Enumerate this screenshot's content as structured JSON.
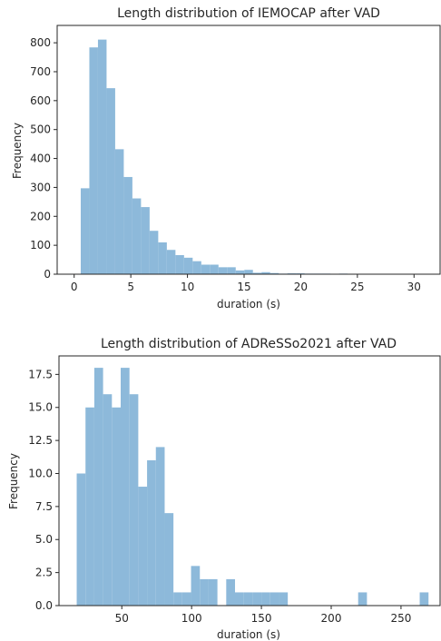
{
  "chart_data": [
    {
      "type": "bar",
      "subtype": "histogram",
      "title": "Length distribution of IEMOCAP after VAD",
      "xlabel": "duration (s)",
      "ylabel": "Frequency",
      "xlim": [
        -1.5,
        32.3
      ],
      "ylim": [
        0,
        860
      ],
      "xticks": [
        0,
        5,
        10,
        15,
        20,
        25,
        30
      ],
      "yticks": [
        0,
        100,
        200,
        300,
        400,
        500,
        600,
        700,
        800
      ],
      "bar_color": "#8db9da",
      "bins": [
        {
          "x0": 0.58,
          "x1": 1.34,
          "value": 297
        },
        {
          "x0": 1.34,
          "x1": 2.1,
          "value": 784
        },
        {
          "x0": 2.1,
          "x1": 2.86,
          "value": 811
        },
        {
          "x0": 2.86,
          "x1": 3.62,
          "value": 643
        },
        {
          "x0": 3.62,
          "x1": 4.38,
          "value": 432
        },
        {
          "x0": 4.38,
          "x1": 5.14,
          "value": 336
        },
        {
          "x0": 5.14,
          "x1": 5.9,
          "value": 262
        },
        {
          "x0": 5.9,
          "x1": 6.66,
          "value": 232
        },
        {
          "x0": 6.66,
          "x1": 7.42,
          "value": 150
        },
        {
          "x0": 7.42,
          "x1": 8.18,
          "value": 110
        },
        {
          "x0": 8.18,
          "x1": 8.94,
          "value": 84
        },
        {
          "x0": 8.94,
          "x1": 9.7,
          "value": 66
        },
        {
          "x0": 9.7,
          "x1": 10.46,
          "value": 57
        },
        {
          "x0": 10.46,
          "x1": 11.22,
          "value": 45
        },
        {
          "x0": 11.22,
          "x1": 11.98,
          "value": 33
        },
        {
          "x0": 11.98,
          "x1": 12.74,
          "value": 33
        },
        {
          "x0": 12.74,
          "x1": 13.5,
          "value": 24
        },
        {
          "x0": 13.5,
          "x1": 14.26,
          "value": 24
        },
        {
          "x0": 14.26,
          "x1": 15.02,
          "value": 13
        },
        {
          "x0": 15.02,
          "x1": 15.78,
          "value": 15
        },
        {
          "x0": 15.78,
          "x1": 16.54,
          "value": 5
        },
        {
          "x0": 16.54,
          "x1": 17.3,
          "value": 7
        },
        {
          "x0": 17.3,
          "x1": 18.06,
          "value": 4
        },
        {
          "x0": 18.06,
          "x1": 18.82,
          "value": 2
        },
        {
          "x0": 18.82,
          "x1": 19.58,
          "value": 3
        },
        {
          "x0": 19.58,
          "x1": 20.34,
          "value": 3
        },
        {
          "x0": 20.34,
          "x1": 21.1,
          "value": 2
        },
        {
          "x0": 21.1,
          "x1": 21.86,
          "value": 2
        },
        {
          "x0": 21.86,
          "x1": 22.62,
          "value": 2
        },
        {
          "x0": 22.62,
          "x1": 23.38,
          "value": 1
        },
        {
          "x0": 23.38,
          "x1": 24.14,
          "value": 2
        },
        {
          "x0": 24.14,
          "x1": 24.9,
          "value": 0
        },
        {
          "x0": 24.9,
          "x1": 25.66,
          "value": 0
        },
        {
          "x0": 25.66,
          "x1": 26.42,
          "value": 0
        },
        {
          "x0": 26.42,
          "x1": 27.18,
          "value": 0
        },
        {
          "x0": 27.18,
          "x1": 27.94,
          "value": 0
        },
        {
          "x0": 27.94,
          "x1": 28.7,
          "value": 0
        },
        {
          "x0": 28.7,
          "x1": 29.46,
          "value": 0
        },
        {
          "x0": 29.46,
          "x1": 30.22,
          "value": 0
        },
        {
          "x0": 30.22,
          "x1": 30.98,
          "value": 1
        }
      ]
    },
    {
      "type": "bar",
      "subtype": "histogram",
      "title": "Length distribution of ADReSSo2021 after VAD",
      "xlabel": "duration (s)",
      "ylabel": "Frequency",
      "xlim": [
        5,
        278
      ],
      "ylim": [
        0,
        18.9
      ],
      "xticks": [
        50,
        100,
        150,
        200,
        250
      ],
      "yticks": [
        "0.0",
        "2.5",
        "5.0",
        "7.5",
        "10.0",
        "12.5",
        "15.0",
        "17.5"
      ],
      "bar_color": "#8db9da",
      "bins": [
        {
          "x0": 17.7,
          "x1": 24.0,
          "value": 10
        },
        {
          "x0": 24.0,
          "x1": 30.3,
          "value": 15
        },
        {
          "x0": 30.3,
          "x1": 36.6,
          "value": 18
        },
        {
          "x0": 36.6,
          "x1": 42.9,
          "value": 16
        },
        {
          "x0": 42.9,
          "x1": 49.2,
          "value": 15
        },
        {
          "x0": 49.2,
          "x1": 55.5,
          "value": 18
        },
        {
          "x0": 55.5,
          "x1": 61.8,
          "value": 16
        },
        {
          "x0": 61.8,
          "x1": 68.1,
          "value": 9
        },
        {
          "x0": 68.1,
          "x1": 74.4,
          "value": 11
        },
        {
          "x0": 74.4,
          "x1": 80.7,
          "value": 12
        },
        {
          "x0": 80.7,
          "x1": 87.0,
          "value": 7
        },
        {
          "x0": 87.0,
          "x1": 93.3,
          "value": 1
        },
        {
          "x0": 93.3,
          "x1": 99.6,
          "value": 1
        },
        {
          "x0": 99.6,
          "x1": 105.9,
          "value": 3
        },
        {
          "x0": 105.9,
          "x1": 112.2,
          "value": 2
        },
        {
          "x0": 112.2,
          "x1": 118.5,
          "value": 2
        },
        {
          "x0": 118.5,
          "x1": 124.8,
          "value": 0
        },
        {
          "x0": 124.8,
          "x1": 131.1,
          "value": 2
        },
        {
          "x0": 131.1,
          "x1": 137.4,
          "value": 1
        },
        {
          "x0": 137.4,
          "x1": 143.7,
          "value": 1
        },
        {
          "x0": 143.7,
          "x1": 150.0,
          "value": 1
        },
        {
          "x0": 150.0,
          "x1": 156.3,
          "value": 1
        },
        {
          "x0": 156.3,
          "x1": 162.6,
          "value": 1
        },
        {
          "x0": 162.6,
          "x1": 168.9,
          "value": 1
        },
        {
          "x0": 168.9,
          "x1": 175.2,
          "value": 0
        },
        {
          "x0": 175.2,
          "x1": 181.5,
          "value": 0
        },
        {
          "x0": 181.5,
          "x1": 187.8,
          "value": 0
        },
        {
          "x0": 187.8,
          "x1": 194.1,
          "value": 0
        },
        {
          "x0": 194.1,
          "x1": 200.4,
          "value": 0
        },
        {
          "x0": 200.4,
          "x1": 206.7,
          "value": 0
        },
        {
          "x0": 206.7,
          "x1": 213.0,
          "value": 0
        },
        {
          "x0": 213.0,
          "x1": 219.3,
          "value": 0
        },
        {
          "x0": 219.3,
          "x1": 225.6,
          "value": 1
        },
        {
          "x0": 225.6,
          "x1": 231.9,
          "value": 0
        },
        {
          "x0": 231.9,
          "x1": 238.2,
          "value": 0
        },
        {
          "x0": 238.2,
          "x1": 244.5,
          "value": 0
        },
        {
          "x0": 244.5,
          "x1": 250.8,
          "value": 0
        },
        {
          "x0": 250.8,
          "x1": 257.1,
          "value": 0
        },
        {
          "x0": 257.1,
          "x1": 263.4,
          "value": 0
        },
        {
          "x0": 263.4,
          "x1": 269.7,
          "value": 1
        }
      ]
    }
  ]
}
